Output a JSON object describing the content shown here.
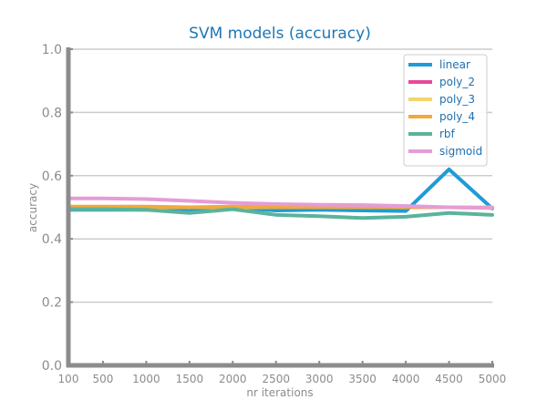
{
  "chart_data": {
    "type": "line",
    "title": "SVM models (accuracy)",
    "xlabel": "nr iterations",
    "ylabel": "accuracy",
    "x": [
      100,
      500,
      1000,
      1500,
      2000,
      2500,
      3000,
      3500,
      4000,
      4500,
      5000
    ],
    "x_tick_labels": [
      "100",
      "500",
      "1000",
      "1500",
      "2000",
      "2500",
      "3000",
      "3500",
      "4000",
      "4500",
      "5000"
    ],
    "ylim": [
      0.0,
      1.0
    ],
    "y_ticks": [
      0.0,
      0.2,
      0.4,
      0.6,
      0.8,
      1.0
    ],
    "y_tick_labels": [
      "0.0",
      "0.2",
      "0.4",
      "0.6",
      "0.8",
      "1.0"
    ],
    "grid": "horizontal",
    "legend_position": "top-right",
    "series": [
      {
        "name": "linear",
        "color": "#1f9bd7",
        "values": [
          0.492,
          0.492,
          0.492,
          0.488,
          0.5,
          0.49,
          0.492,
          0.49,
          0.488,
          0.62,
          0.496
        ]
      },
      {
        "name": "poly_2",
        "color": "#e8489a",
        "values": [
          0.5,
          0.5,
          0.5,
          0.5,
          0.5,
          0.5,
          0.5,
          0.5,
          0.5,
          0.5,
          0.5
        ]
      },
      {
        "name": "poly_3",
        "color": "#f1d66b",
        "values": [
          0.5,
          0.5,
          0.5,
          0.5,
          0.5,
          0.5,
          0.5,
          0.5,
          0.5,
          0.5,
          0.5
        ]
      },
      {
        "name": "poly_4",
        "color": "#f2a93b",
        "values": [
          0.502,
          0.502,
          0.502,
          0.5,
          0.502,
          0.5,
          0.5,
          0.5,
          0.5,
          0.5,
          0.498
        ]
      },
      {
        "name": "rbf",
        "color": "#5bb39b",
        "values": [
          0.494,
          0.494,
          0.492,
          0.482,
          0.494,
          0.476,
          0.472,
          0.466,
          0.47,
          0.482,
          0.476
        ]
      },
      {
        "name": "sigmoid",
        "color": "#e59cd6",
        "values": [
          0.528,
          0.528,
          0.526,
          0.52,
          0.514,
          0.51,
          0.508,
          0.507,
          0.504,
          0.5,
          0.498
        ]
      }
    ]
  }
}
